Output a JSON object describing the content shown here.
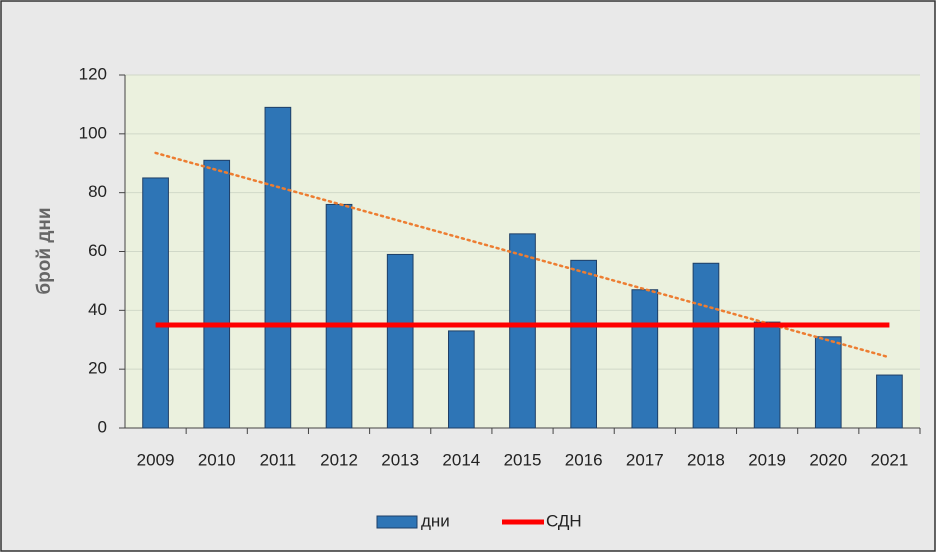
{
  "chart_data": {
    "type": "bar",
    "ylabel": "брой дни",
    "categories": [
      "2009",
      "2010",
      "2011",
      "2012",
      "2013",
      "2014",
      "2015",
      "2016",
      "2017",
      "2018",
      "2019",
      "2020",
      "2021"
    ],
    "series": [
      {
        "name": "дни",
        "type": "bar",
        "color": "#2e75b6",
        "values": [
          85,
          91,
          109,
          76,
          59,
          33,
          66,
          57,
          47,
          56,
          36,
          31,
          18
        ]
      },
      {
        "name": "СДН",
        "type": "line",
        "color": "#ff0000",
        "values": [
          35,
          35,
          35,
          35,
          35,
          35,
          35,
          35,
          35,
          35,
          35,
          35,
          35
        ]
      }
    ],
    "trendline": {
      "type": "linear",
      "series": 0,
      "color": "#ed7d31"
    },
    "ylim": [
      0,
      120
    ],
    "yticks": [
      0,
      20,
      40,
      60,
      80,
      100,
      120
    ],
    "grid": true,
    "legend": "bottom"
  }
}
